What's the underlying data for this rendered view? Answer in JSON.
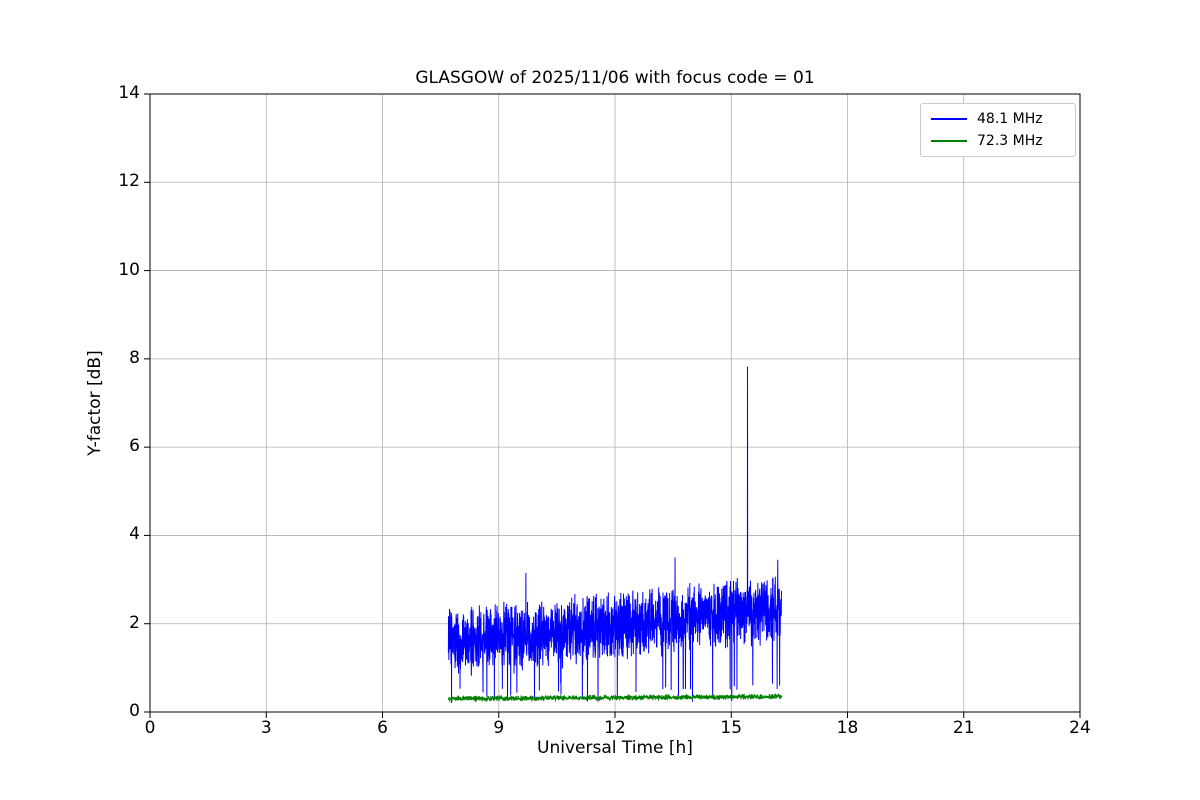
{
  "chart_data": {
    "type": "line",
    "title": "GLASGOW of 2025/11/06 with focus code = 01",
    "xlabel": "Universal Time [h]",
    "ylabel": "Y-factor [dB]",
    "xlim": [
      0,
      24
    ],
    "ylim": [
      0,
      14
    ],
    "xticks": [
      0,
      3,
      6,
      9,
      12,
      15,
      18,
      21,
      24
    ],
    "yticks": [
      0,
      2,
      4,
      6,
      8,
      10,
      12,
      14
    ],
    "grid": true,
    "grid_color": "#b0b0b0",
    "axis_color": "#000000",
    "legend_position": "upper right",
    "series": [
      {
        "name": "48.1 MHz",
        "color": "#0000ff",
        "x_start": 7.7,
        "x_end": 16.3,
        "baseline_start": 1.55,
        "baseline_end": 2.35,
        "noise_amplitude": 0.85,
        "dip_probability": 0.02,
        "dip_depth": 0.45,
        "min_clip": 0.2,
        "points": 2000,
        "spikes": [
          {
            "x": 9.7,
            "y": 3.15
          },
          {
            "x": 13.55,
            "y": 3.5
          },
          {
            "x": 15.42,
            "y": 7.82
          },
          {
            "x": 16.2,
            "y": 3.45
          }
        ],
        "seed": 42
      },
      {
        "name": "72.3 MHz",
        "color": "#008000",
        "x_start": 7.7,
        "x_end": 16.3,
        "baseline_start": 0.3,
        "baseline_end": 0.35,
        "noise_amplitude": 0.07,
        "dip_probability": 0,
        "dip_depth": 0,
        "min_clip": 0.1,
        "points": 1700,
        "spikes": [],
        "seed": 7
      }
    ]
  }
}
